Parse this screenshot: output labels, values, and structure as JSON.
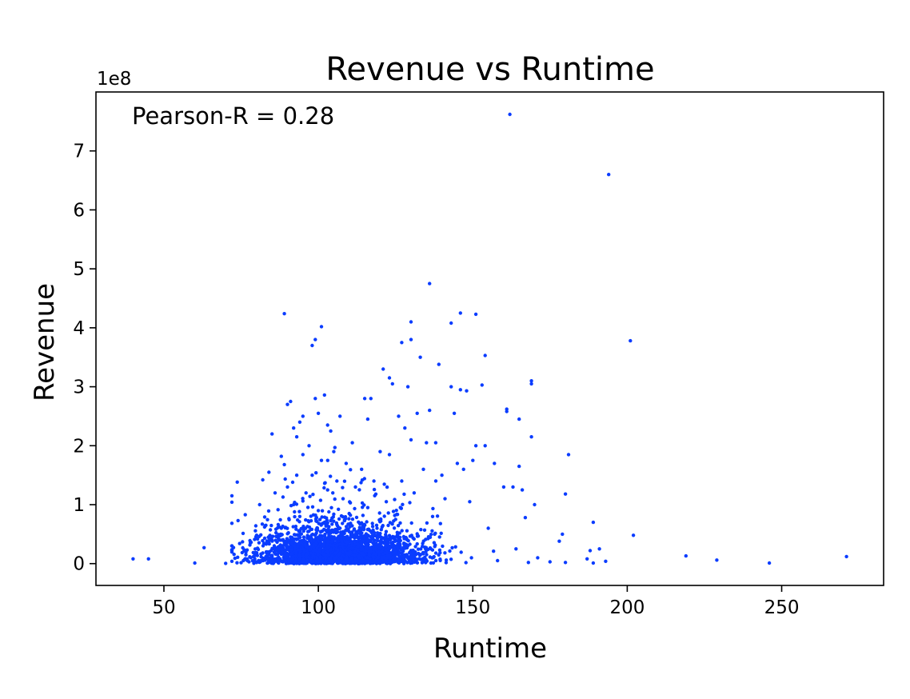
{
  "chart_data": {
    "type": "scatter",
    "title": "Revenue vs Runtime",
    "xlabel": "Runtime",
    "ylabel": "Revenue",
    "xlim": [
      28,
      283
    ],
    "ylim": [
      -37000000,
      800000000
    ],
    "x_ticks": [
      50,
      100,
      150,
      200,
      250
    ],
    "x_tick_labels": [
      "50",
      "100",
      "150",
      "200",
      "250"
    ],
    "y_ticks": [
      0,
      100000000,
      200000000,
      300000000,
      400000000,
      500000000,
      600000000,
      700000000
    ],
    "y_tick_labels": [
      "0",
      "1",
      "2",
      "3",
      "4",
      "5",
      "6",
      "7"
    ],
    "y_offset_label": "1e8",
    "annotation": "Pearson-R = 0.28",
    "marker_color": "#0a3cff",
    "grid": false,
    "series": [
      {
        "points": [
          [
            40,
            8000000
          ],
          [
            45,
            8000000
          ],
          [
            60,
            1000000
          ],
          [
            63,
            27000000
          ],
          [
            70,
            500000
          ],
          [
            72,
            4000000
          ],
          [
            73,
            9000000
          ],
          [
            74,
            73000000
          ],
          [
            75,
            1500000
          ],
          [
            76,
            22000000
          ],
          [
            77,
            5000000
          ],
          [
            78,
            35000000
          ],
          [
            79,
            12000000
          ],
          [
            80,
            2000000
          ],
          [
            80,
            48000000
          ],
          [
            81,
            100000000
          ],
          [
            82,
            18000000
          ],
          [
            82,
            142000000
          ],
          [
            83,
            65000000
          ],
          [
            84,
            8000000
          ],
          [
            84,
            155000000
          ],
          [
            85,
            220000000
          ],
          [
            85,
            40000000
          ],
          [
            86,
            120000000
          ],
          [
            87,
            25000000
          ],
          [
            88,
            182000000
          ],
          [
            88,
            60000000
          ],
          [
            89,
            424000000
          ],
          [
            89,
            168000000
          ],
          [
            90,
            270000000
          ],
          [
            90,
            130000000
          ],
          [
            91,
            275000000
          ],
          [
            91,
            45000000
          ],
          [
            92,
            230000000
          ],
          [
            92,
            100000000
          ],
          [
            93,
            215000000
          ],
          [
            93,
            150000000
          ],
          [
            94,
            240000000
          ],
          [
            94,
            80000000
          ],
          [
            95,
            250000000
          ],
          [
            95,
            185000000
          ],
          [
            96,
            120000000
          ],
          [
            97,
            200000000
          ],
          [
            97,
            55000000
          ],
          [
            98,
            370000000
          ],
          [
            98,
            150000000
          ],
          [
            99,
            380000000
          ],
          [
            99,
            280000000
          ],
          [
            100,
            255000000
          ],
          [
            100,
            90000000
          ],
          [
            101,
            402000000
          ],
          [
            101,
            175000000
          ],
          [
            102,
            286000000
          ],
          [
            102,
            70000000
          ],
          [
            103,
            235000000
          ],
          [
            103,
            125000000
          ],
          [
            104,
            225000000
          ],
          [
            104,
            30000000
          ],
          [
            105,
            190000000
          ],
          [
            106,
            140000000
          ],
          [
            107,
            250000000
          ],
          [
            107,
            60000000
          ],
          [
            108,
            110000000
          ],
          [
            109,
            170000000
          ],
          [
            110,
            85000000
          ],
          [
            111,
            205000000
          ],
          [
            112,
            130000000
          ],
          [
            113,
            45000000
          ],
          [
            114,
            160000000
          ],
          [
            115,
            280000000
          ],
          [
            116,
            245000000
          ],
          [
            116,
            95000000
          ],
          [
            117,
            280000000
          ],
          [
            118,
            140000000
          ],
          [
            119,
            60000000
          ],
          [
            120,
            190000000
          ],
          [
            121,
            330000000
          ],
          [
            122,
            105000000
          ],
          [
            123,
            315000000
          ],
          [
            123,
            185000000
          ],
          [
            124,
            305000000
          ],
          [
            125,
            75000000
          ],
          [
            126,
            250000000
          ],
          [
            127,
            375000000
          ],
          [
            127,
            140000000
          ],
          [
            128,
            230000000
          ],
          [
            129,
            300000000
          ],
          [
            130,
            410000000
          ],
          [
            130,
            380000000
          ],
          [
            130,
            210000000
          ],
          [
            131,
            120000000
          ],
          [
            132,
            255000000
          ],
          [
            133,
            350000000
          ],
          [
            134,
            160000000
          ],
          [
            135,
            205000000
          ],
          [
            136,
            475000000
          ],
          [
            136,
            260000000
          ],
          [
            137,
            80000000
          ],
          [
            138,
            205000000
          ],
          [
            139,
            338000000
          ],
          [
            140,
            150000000
          ],
          [
            141,
            110000000
          ],
          [
            143,
            408000000
          ],
          [
            143,
            300000000
          ],
          [
            144,
            255000000
          ],
          [
            145,
            170000000
          ],
          [
            146,
            425000000
          ],
          [
            146,
            295000000
          ],
          [
            147,
            160000000
          ],
          [
            148,
            293000000
          ],
          [
            149,
            105000000
          ],
          [
            150,
            175000000
          ],
          [
            151,
            423000000
          ],
          [
            151,
            200000000
          ],
          [
            153,
            303000000
          ],
          [
            154,
            353000000
          ],
          [
            154,
            200000000
          ],
          [
            155,
            60000000
          ],
          [
            157,
            170000000
          ],
          [
            158,
            5000000
          ],
          [
            160,
            130000000
          ],
          [
            161,
            262000000
          ],
          [
            161,
            258000000
          ],
          [
            162,
            762000000
          ],
          [
            163,
            130000000
          ],
          [
            164,
            25000000
          ],
          [
            165,
            245000000
          ],
          [
            165,
            165000000
          ],
          [
            166,
            125000000
          ],
          [
            167,
            78000000
          ],
          [
            168,
            2000000
          ],
          [
            169,
            305000000
          ],
          [
            169,
            310000000
          ],
          [
            169,
            215000000
          ],
          [
            170,
            100000000
          ],
          [
            171,
            10000000
          ],
          [
            175,
            3000000
          ],
          [
            178,
            38000000
          ],
          [
            179,
            50000000
          ],
          [
            180,
            118000000
          ],
          [
            180,
            2000000
          ],
          [
            181,
            185000000
          ],
          [
            187,
            8000000
          ],
          [
            188,
            22000000
          ],
          [
            189,
            70000000
          ],
          [
            189,
            1000000
          ],
          [
            191,
            25000000
          ],
          [
            193,
            4000000
          ],
          [
            194,
            660000000
          ],
          [
            201,
            378000000
          ],
          [
            202,
            48000000
          ],
          [
            219,
            13000000
          ],
          [
            229,
            6000000
          ],
          [
            246,
            1000000
          ],
          [
            271,
            12000000
          ]
        ],
        "cluster": {
          "count": 2600,
          "x_range": [
            72,
            160
          ],
          "x_center": 107,
          "y_center": 12000000,
          "y_spread": 26000000
        }
      }
    ]
  }
}
